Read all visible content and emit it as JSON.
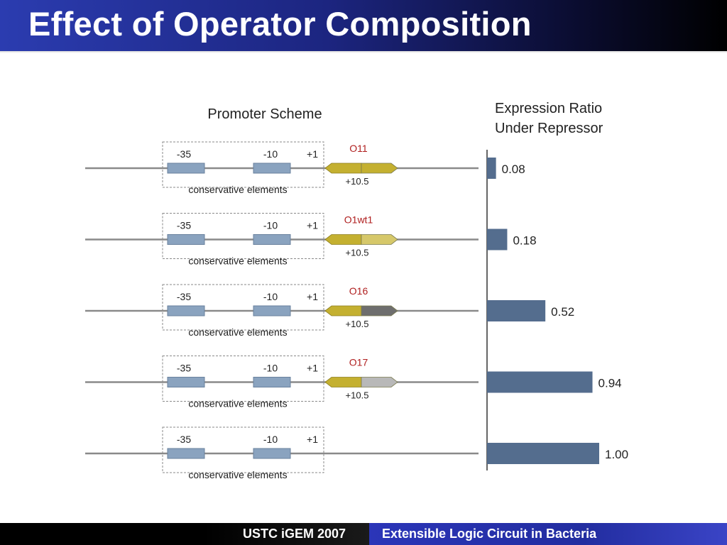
{
  "slide_title": "Effect of Operator Composition",
  "diagram": {
    "scheme_title": "Promoter Scheme",
    "ratio_title_line1": "Expression Ratio",
    "ratio_title_line2": "Under Repressor",
    "rows": [
      {
        "label_minus35": "-35",
        "label_minus10": "-10",
        "label_plus1": "+1",
        "box_caption": "conservative elements",
        "operator_name": "O11",
        "operator_position": "+10.5",
        "right_half_color": "#c4b030",
        "ratio": 0.08,
        "ratio_text": "0.08"
      },
      {
        "label_minus35": "-35",
        "label_minus10": "-10",
        "label_plus1": "+1",
        "box_caption": "conservative elements",
        "operator_name": "O1wt1",
        "operator_position": "+10.5",
        "right_half_color": "#d6c86a",
        "ratio": 0.18,
        "ratio_text": "0.18"
      },
      {
        "label_minus35": "-35",
        "label_minus10": "-10",
        "label_plus1": "+1",
        "box_caption": "conservative elements",
        "operator_name": "O16",
        "operator_position": "+10.5",
        "right_half_color": "#6e6e6e",
        "ratio": 0.52,
        "ratio_text": "0.52"
      },
      {
        "label_minus35": "-35",
        "label_minus10": "-10",
        "label_plus1": "+1",
        "box_caption": "conservative elements",
        "operator_name": "O17",
        "operator_position": "+10.5",
        "right_half_color": "#b8b8b8",
        "ratio": 0.94,
        "ratio_text": "0.94"
      },
      {
        "label_minus35": "-35",
        "label_minus10": "-10",
        "label_plus1": "+1",
        "box_caption": "conservative elements",
        "operator_name": "",
        "operator_position": "",
        "right_half_color": "",
        "ratio": 1.0,
        "ratio_text": "1.00"
      }
    ]
  },
  "colors": {
    "element_box": "#8aa3bf",
    "operator_left": "#c4b030",
    "bar": "#546d8e",
    "operator_label": "#b02020"
  },
  "footer": {
    "left": "USTC iGEM 2007",
    "right": "Extensible Logic Circuit in Bacteria"
  }
}
